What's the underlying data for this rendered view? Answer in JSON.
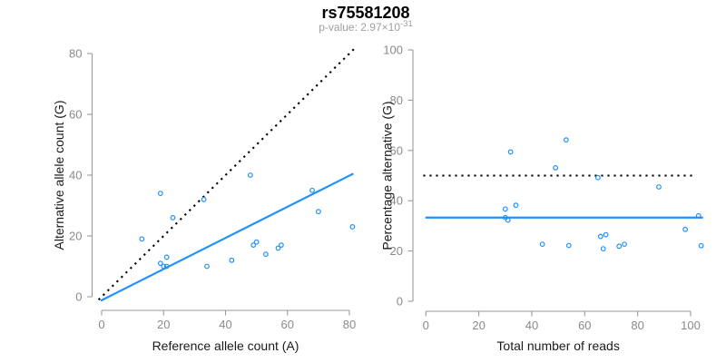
{
  "header": {
    "title": "rs75581208",
    "pvalue_base": "p-value: 2.97×10",
    "pvalue_exponent": "-31"
  },
  "style": {
    "accent_blue": "#1E90FF",
    "dotted_black": "#000000",
    "axis_line_gray": "#9A9A9A",
    "tick_label_gray": "#8A8A8A",
    "axis_title_color": "#1A1A1A",
    "title_color": "#000000",
    "subtitle_gray": "#9E9E9E",
    "background": "#FFFFFF"
  },
  "chart_data": [
    {
      "type": "scatter",
      "panel": "left",
      "title": "",
      "xlabel": "Reference allele count (A)",
      "ylabel": "Alternative allele count (G)",
      "xlim": [
        0,
        80
      ],
      "ylim": [
        0,
        80
      ],
      "xticks": [
        0,
        20,
        40,
        60,
        80
      ],
      "yticks": [
        0,
        20,
        40,
        60,
        80
      ],
      "grid": false,
      "legend": null,
      "point_color": "#1E90FF",
      "x": [
        13,
        19,
        19,
        20,
        21,
        21,
        23,
        33,
        34,
        42,
        48,
        49,
        50,
        53,
        57,
        58,
        68,
        70,
        81
      ],
      "y": [
        19,
        34,
        11,
        10,
        10,
        13,
        26,
        32,
        10,
        12,
        40,
        17,
        18,
        14,
        16,
        17,
        35,
        28,
        23
      ],
      "lines": [
        {
          "name": "identity-line",
          "style": "dotted",
          "color": "#000000",
          "x": [
            -1,
            82
          ],
          "y": [
            -1,
            82
          ]
        },
        {
          "name": "expected-ratio-line",
          "style": "solid",
          "color": "#1E90FF",
          "x": [
            -0.3,
            81.3
          ],
          "y": [
            -1.3,
            40.5
          ]
        }
      ]
    },
    {
      "type": "scatter",
      "panel": "right",
      "title": "",
      "xlabel": "Total number of reads",
      "ylabel": "Percentage alternative (G)",
      "xlim": [
        0,
        100
      ],
      "ylim": [
        0,
        100
      ],
      "xticks": [
        0,
        20,
        40,
        60,
        80,
        100
      ],
      "yticks": [
        0,
        20,
        40,
        60,
        80,
        100
      ],
      "grid": false,
      "legend": null,
      "point_color": "#1E90FF",
      "x": [
        32,
        53,
        30,
        30,
        31,
        34,
        49,
        65,
        44,
        54,
        88,
        66,
        68,
        67,
        73,
        75,
        103,
        98,
        104
      ],
      "y": [
        59.4,
        64.2,
        36.7,
        33.3,
        32.3,
        38.2,
        53.1,
        49.2,
        22.7,
        22.2,
        45.5,
        25.8,
        26.5,
        20.9,
        21.9,
        22.7,
        34.0,
        28.6,
        22.1
      ],
      "lines": [
        {
          "name": "fifty-percent-line",
          "style": "dotted",
          "color": "#000000",
          "x": [
            -1,
            102
          ],
          "y": [
            50,
            50
          ]
        },
        {
          "name": "mean-percent-line",
          "style": "solid",
          "color": "#1E90FF",
          "x": [
            -0.2,
            104.7
          ],
          "y": [
            33.3,
            33.3
          ]
        }
      ]
    }
  ]
}
